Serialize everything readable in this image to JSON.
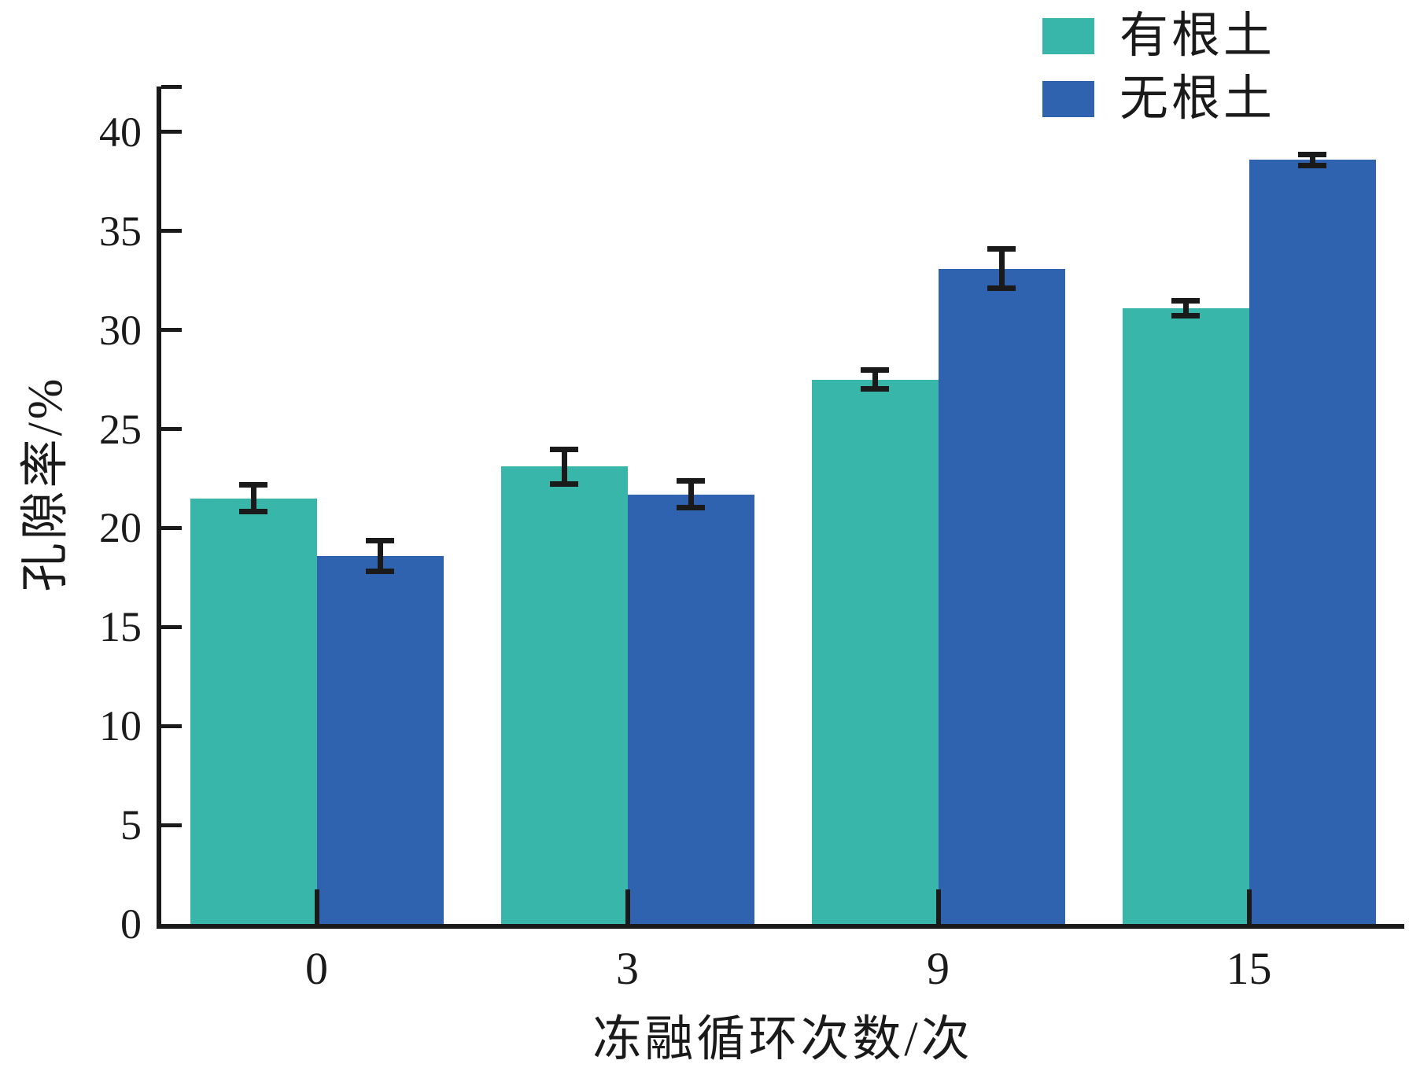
{
  "chart_data": {
    "type": "bar",
    "title": "",
    "xlabel": "冻融循环次数/次",
    "ylabel": "孔隙率/%",
    "categories": [
      "0",
      "3",
      "9",
      "15"
    ],
    "series": [
      {
        "name": "有根土",
        "color": "#39B6AA",
        "values": [
          21.5,
          23.1,
          27.5,
          31.1
        ],
        "errors": [
          0.7,
          0.9,
          0.5,
          0.4
        ]
      },
      {
        "name": "无根土",
        "color": "#2F63AF",
        "values": [
          18.6,
          21.7,
          33.1,
          38.6
        ],
        "errors": [
          0.8,
          0.7,
          1.0,
          0.3
        ]
      }
    ],
    "y_ticks": [
      0,
      5,
      10,
      15,
      20,
      25,
      30,
      35,
      40
    ],
    "ylim": [
      0,
      42.3
    ],
    "grid": false,
    "legend_position": "top-right",
    "axis_color": "#1a1a1a",
    "error_bar_color": "#1a1a1a"
  }
}
